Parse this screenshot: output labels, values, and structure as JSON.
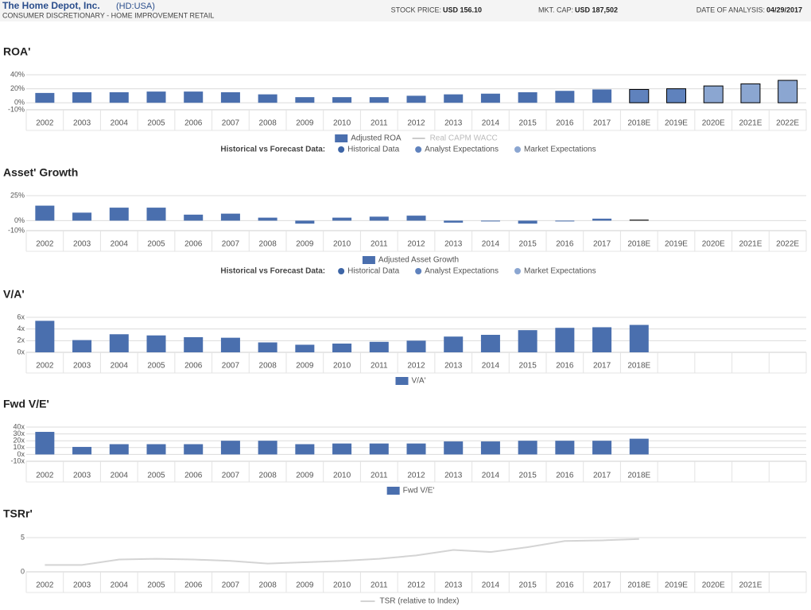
{
  "header": {
    "company": "The Home Depot, Inc.",
    "ticker": "(HD:USA)",
    "sector": "CONSUMER DISCRETIONARY - HOME IMPROVEMENT RETAIL",
    "stock_price_label": "STOCK PRICE:",
    "stock_price": "USD 156.10",
    "mkt_cap_label": "MKT. CAP:",
    "mkt_cap": "USD 187,502",
    "date_label": "DATE OF ANALYSIS:",
    "date": "04/29/2017"
  },
  "chart_data": [
    {
      "type": "bar",
      "title": "ROA'",
      "categories": [
        "2002",
        "2003",
        "2004",
        "2005",
        "2006",
        "2007",
        "2008",
        "2009",
        "2010",
        "2011",
        "2012",
        "2013",
        "2014",
        "2015",
        "2016",
        "2017",
        "2018E",
        "2019E",
        "2020E",
        "2021E",
        "2022E"
      ],
      "series": [
        {
          "name": "Adjusted ROA",
          "color": "#4a6fae",
          "values": [
            14,
            15,
            15,
            16,
            16,
            15,
            12,
            8,
            8,
            8,
            10,
            12,
            13,
            15,
            17,
            19,
            19,
            20,
            24,
            27,
            32
          ]
        }
      ],
      "bar_colors": [
        "#4a6fae",
        "#4a6fae",
        "#4a6fae",
        "#4a6fae",
        "#4a6fae",
        "#4a6fae",
        "#4a6fae",
        "#4a6fae",
        "#4a6fae",
        "#4a6fae",
        "#4a6fae",
        "#4a6fae",
        "#4a6fae",
        "#4a6fae",
        "#4a6fae",
        "#4a6fae",
        "#5f82bd",
        "#5f82bd",
        "#8ba6d1",
        "#8ba6d1",
        "#8ba6d1"
      ],
      "bar_outlines": [
        null,
        null,
        null,
        null,
        null,
        null,
        null,
        null,
        null,
        null,
        null,
        null,
        null,
        null,
        null,
        null,
        "#000000",
        "#000000",
        "#000000",
        "#000000",
        "#000000"
      ],
      "extra_legend": {
        "name": "Real CAPM WACC",
        "color": "#cccccc"
      },
      "forecast_legend": {
        "label": "Historical vs Forecast Data:",
        "items": [
          {
            "name": "Historical Data",
            "color": "#3d65a6"
          },
          {
            "name": "Analyst Expectations",
            "color": "#5f82bd"
          },
          {
            "name": "Market Expectations",
            "color": "#8ba6d1"
          }
        ]
      },
      "ylim": [
        -10,
        40
      ],
      "yticks": [
        {
          "value": 40,
          "label": "40%"
        },
        {
          "value": 20,
          "label": "20%"
        },
        {
          "value": 0,
          "label": "0%"
        },
        {
          "value": -10,
          "label": "-10%"
        }
      ],
      "grid": true
    },
    {
      "type": "bar",
      "title": "Asset' Growth",
      "categories": [
        "2002",
        "2003",
        "2004",
        "2005",
        "2006",
        "2007",
        "2008",
        "2009",
        "2010",
        "2011",
        "2012",
        "2013",
        "2014",
        "2015",
        "2016",
        "2017",
        "2018E",
        "2019E",
        "2020E",
        "2021E",
        "2022E"
      ],
      "series": [
        {
          "name": "Adjusted Asset Growth",
          "color": "#4a6fae",
          "values": [
            15,
            8,
            13,
            13,
            6,
            7,
            3,
            -3,
            3,
            4,
            5,
            -2,
            0,
            -3,
            0,
            2,
            1,
            null,
            null,
            null,
            null
          ]
        }
      ],
      "bar_colors": [
        "#4a6fae",
        "#4a6fae",
        "#4a6fae",
        "#4a6fae",
        "#4a6fae",
        "#4a6fae",
        "#4a6fae",
        "#4a6fae",
        "#4a6fae",
        "#4a6fae",
        "#4a6fae",
        "#4a6fae",
        "#4a6fae",
        "#4a6fae",
        "#4a6fae",
        "#4a6fae",
        "#1a1a1a",
        "#4a6fae",
        "#4a6fae",
        "#4a6fae",
        "#4a6fae"
      ],
      "forecast_legend": {
        "label": "Historical vs Forecast Data:",
        "items": [
          {
            "name": "Historical Data",
            "color": "#3d65a6"
          },
          {
            "name": "Analyst Expectations",
            "color": "#5f82bd"
          },
          {
            "name": "Market Expectations",
            "color": "#8ba6d1"
          }
        ]
      },
      "ylim": [
        -10,
        25
      ],
      "yticks": [
        {
          "value": 25,
          "label": "25%"
        },
        {
          "value": 0,
          "label": "0%"
        },
        {
          "value": -10,
          "label": "-10%"
        }
      ],
      "grid": true
    },
    {
      "type": "bar",
      "title": "V/A'",
      "categories": [
        "2002",
        "2003",
        "2004",
        "2005",
        "2006",
        "2007",
        "2008",
        "2009",
        "2010",
        "2011",
        "2012",
        "2013",
        "2014",
        "2015",
        "2016",
        "2017",
        "2018E",
        null,
        null,
        null,
        null
      ],
      "series": [
        {
          "name": "V/A'",
          "color": "#4a6fae",
          "values": [
            5.4,
            2.1,
            3.1,
            2.9,
            2.6,
            2.5,
            1.7,
            1.3,
            1.5,
            1.8,
            2.0,
            2.7,
            3.0,
            3.8,
            4.2,
            4.3,
            4.7,
            null,
            null,
            null,
            null
          ]
        }
      ],
      "ylim": [
        0,
        6
      ],
      "yticks": [
        {
          "value": 6,
          "label": "6x"
        },
        {
          "value": 4,
          "label": "4x"
        },
        {
          "value": 2,
          "label": "2x"
        },
        {
          "value": 0,
          "label": "0x"
        }
      ],
      "grid": true
    },
    {
      "type": "bar",
      "title": "Fwd V/E'",
      "categories": [
        "2002",
        "2003",
        "2004",
        "2005",
        "2006",
        "2007",
        "2008",
        "2009",
        "2010",
        "2011",
        "2012",
        "2013",
        "2014",
        "2015",
        "2016",
        "2017",
        "2018E",
        null,
        null,
        null,
        null
      ],
      "series": [
        {
          "name": "Fwd V/E'",
          "color": "#4a6fae",
          "values": [
            33,
            11,
            15,
            15,
            15,
            20,
            20,
            15,
            16,
            16,
            16,
            19,
            19,
            20,
            20,
            20,
            23,
            null,
            null,
            null,
            null
          ]
        }
      ],
      "ylim": [
        -10,
        40
      ],
      "yticks": [
        {
          "value": 40,
          "label": "40x"
        },
        {
          "value": 30,
          "label": "30x"
        },
        {
          "value": 20,
          "label": "20x"
        },
        {
          "value": 10,
          "label": "10x"
        },
        {
          "value": 0,
          "label": "0x"
        },
        {
          "value": -10,
          "label": "-10x"
        }
      ],
      "grid": true
    },
    {
      "type": "line",
      "title": "TSRr'",
      "categories": [
        "2002",
        "2003",
        "2004",
        "2005",
        "2006",
        "2007",
        "2008",
        "2009",
        "2010",
        "2011",
        "2012",
        "2013",
        "2014",
        "2015",
        "2016",
        "2017",
        "2018E",
        "2019E",
        "2020E",
        "2021E",
        null
      ],
      "series": [
        {
          "name": "TSR (relative to Index)",
          "color": "#d4d4d4",
          "values": [
            1.0,
            1.0,
            1.8,
            1.9,
            1.8,
            1.6,
            1.2,
            1.4,
            1.6,
            1.9,
            2.4,
            3.2,
            2.9,
            3.6,
            4.5,
            4.6,
            4.8,
            null,
            null,
            null,
            null
          ]
        }
      ],
      "ylim": [
        0,
        5
      ],
      "yticks": [
        5,
        0
      ],
      "grid": true
    }
  ]
}
